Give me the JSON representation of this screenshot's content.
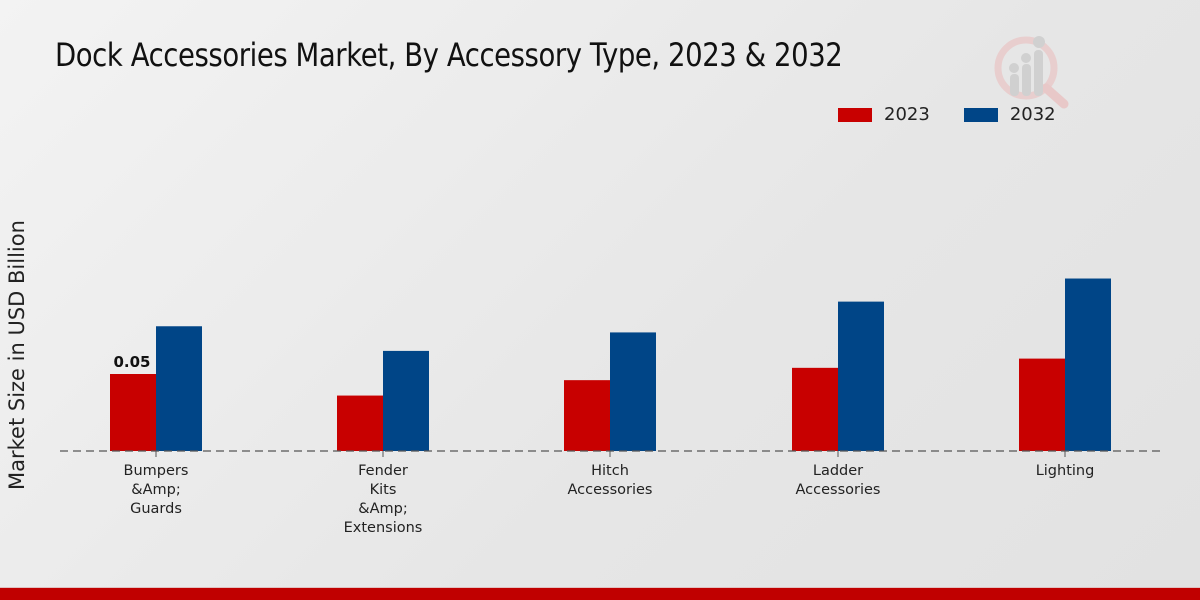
{
  "chart_data": {
    "type": "bar",
    "title": "Dock Accessories Market, By Accessory Type, 2023 & 2032",
    "xlabel": "",
    "ylabel": "Market Size in USD Billion",
    "categories": [
      [
        "Bumpers",
        "&Amp;",
        "Guards"
      ],
      [
        "Fender",
        "Kits",
        "&Amp;",
        "Extensions"
      ],
      [
        "Hitch",
        "Accessories"
      ],
      [
        "Ladder",
        "Accessories"
      ],
      [
        "Lighting"
      ]
    ],
    "series": [
      {
        "name": "2023",
        "color": "#c80000",
        "values": [
          0.05,
          0.036,
          0.046,
          0.054,
          0.06
        ]
      },
      {
        "name": "2032",
        "color": "#004587",
        "values": [
          0.081,
          0.065,
          0.077,
          0.097,
          0.112
        ]
      }
    ],
    "data_labels": [
      {
        "series": 0,
        "index": 0,
        "text": "0.05"
      }
    ],
    "ylim": [
      0,
      0.13
    ],
    "grid": false,
    "legend_position": "top-right"
  },
  "footer_color": "#c00000"
}
